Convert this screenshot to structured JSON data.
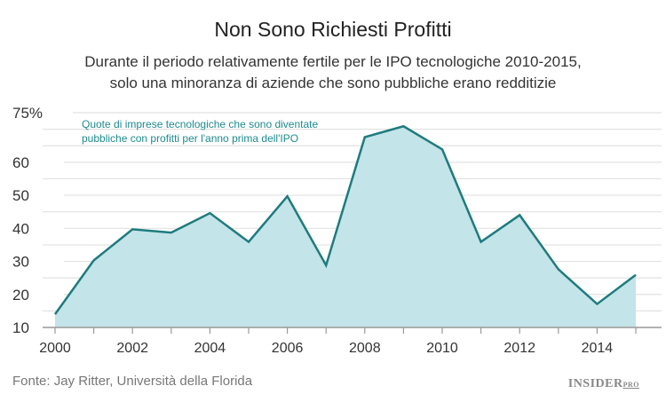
{
  "title": "Non Sono Richiesti Profitti",
  "subtitle_line1": "Durante il periodo relativamente fertile per le IPO tecnologiche 2010-2015,",
  "subtitle_line2": "solo una minoranza di aziende che sono pubbliche erano redditizie",
  "source": "Fonte: Jay Ritter, Università della Florida",
  "logo": {
    "main": "INSIDER",
    "suffix": "PRO"
  },
  "chart_data": {
    "type": "area",
    "annotation_line1": "Quote di imprese tecnologiche che sono diventate",
    "annotation_line2": "pubbliche con  profitti per l'anno prima dell'IPO",
    "x": [
      2000,
      2001,
      2002,
      2003,
      2004,
      2005,
      2006,
      2007,
      2008,
      2009,
      2010,
      2011,
      2012,
      2013,
      2014,
      2015
    ],
    "values": [
      14,
      30.3,
      39.7,
      38.7,
      44.6,
      35.9,
      49.7,
      28.8,
      67.6,
      70.9,
      63.9,
      35.9,
      44,
      27.6,
      17.1,
      25.9
    ],
    "xticks": [
      "2000",
      "2002",
      "2004",
      "2006",
      "2008",
      "2010",
      "2012",
      "2014"
    ],
    "yticks": [
      {
        "v": 75,
        "label": "75%"
      },
      {
        "v": 60,
        "label": "60"
      },
      {
        "v": 50,
        "label": "50"
      },
      {
        "v": 40,
        "label": "40"
      },
      {
        "v": 30,
        "label": "30"
      },
      {
        "v": 20,
        "label": "20"
      },
      {
        "v": 10,
        "label": "10"
      }
    ],
    "ylim": [
      10,
      75
    ],
    "xlim": [
      2000,
      2015
    ],
    "grid": true,
    "colors": {
      "line": "#1e7b7e",
      "fill": "#c3e4e8",
      "annotation": "#1e8a8e",
      "grid": "#e2e2e2",
      "axis": "#999999"
    }
  }
}
